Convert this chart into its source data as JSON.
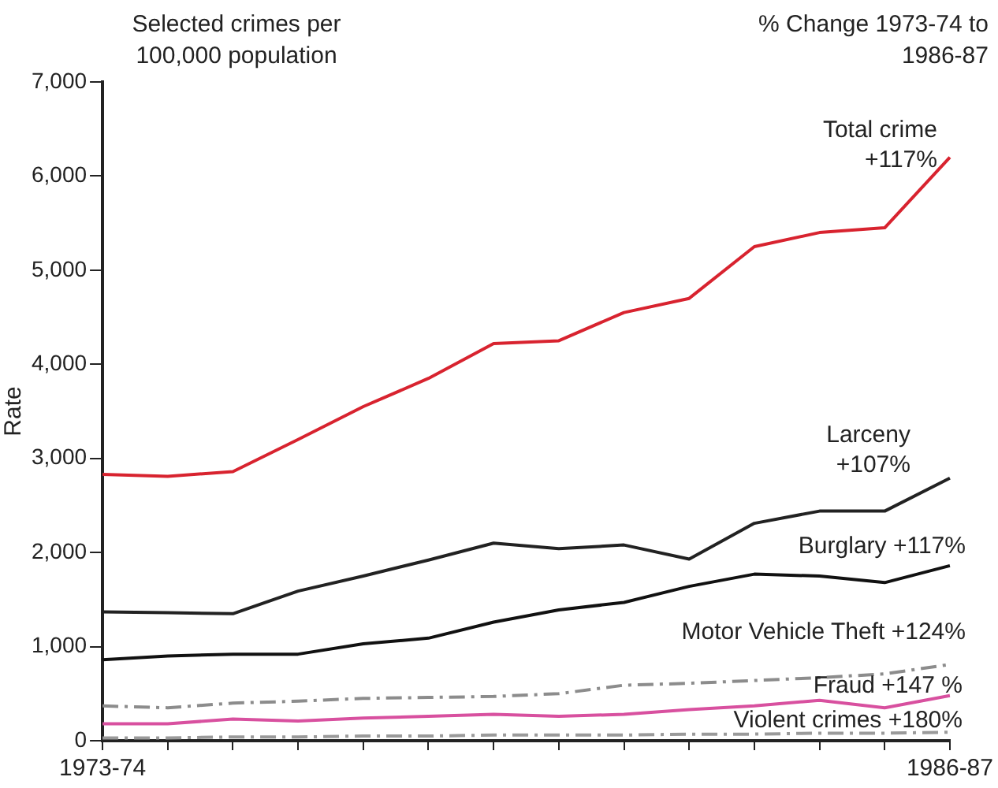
{
  "chart_data": {
    "type": "line",
    "title": "Selected crimes per 100,000 population",
    "subtitle": "% Change 1973-74 to 1986-87",
    "ylabel": "Rate",
    "categories": [
      "1973-74",
      null,
      null,
      null,
      null,
      null,
      null,
      null,
      null,
      null,
      null,
      null,
      null,
      "1986-87"
    ],
    "ylim": [
      0,
      7000
    ],
    "yticks": [
      0,
      {
        "value": 1000,
        "label": "1,000"
      },
      {
        "value": 2000,
        "label": "2,000"
      },
      {
        "value": 3000,
        "label": "3,000"
      },
      {
        "value": 4000,
        "label": "4,000"
      },
      {
        "value": 5000,
        "label": "5,000"
      },
      {
        "value": 6000,
        "label": "6,000"
      },
      {
        "value": 7000,
        "label": "7,000"
      }
    ],
    "grid": false,
    "legend": false,
    "marker": "none",
    "line_style": "solid",
    "series": [
      {
        "name": "Total crime +117%",
        "color": "#d8232f",
        "values": [
          2830,
          2810,
          2860,
          3200,
          3550,
          3850,
          4220,
          4250,
          4550,
          4700,
          5250,
          5400,
          5450,
          6200
        ]
      },
      {
        "name": "Larceny +107%",
        "color": "#222222",
        "values": [
          1370,
          1360,
          1350,
          1590,
          1750,
          1920,
          2100,
          2040,
          2080,
          1930,
          2310,
          2440,
          2440,
          2790
        ]
      },
      {
        "name": "Burglary +117%",
        "color": "#111111",
        "values": [
          860,
          900,
          920,
          920,
          1030,
          1090,
          1260,
          1390,
          1470,
          1640,
          1770,
          1750,
          1680,
          1860
        ]
      },
      {
        "name": "Motor Vehicle Theft +124%",
        "color": "#8c8c8c",
        "line_style": "dashed",
        "values": [
          370,
          350,
          400,
          420,
          450,
          460,
          470,
          500,
          590,
          610,
          640,
          670,
          710,
          810
        ]
      },
      {
        "name": "Fraud +147 %",
        "color": "#d8509f",
        "values": [
          180,
          180,
          230,
          210,
          240,
          260,
          280,
          260,
          280,
          330,
          370,
          430,
          350,
          480
        ]
      },
      {
        "name": "Violent crimes +180%",
        "color": "#9a9a9a",
        "line_style": "dashed",
        "values": [
          30,
          30,
          40,
          40,
          50,
          50,
          60,
          60,
          60,
          70,
          70,
          80,
          80,
          90
        ]
      }
    ]
  }
}
